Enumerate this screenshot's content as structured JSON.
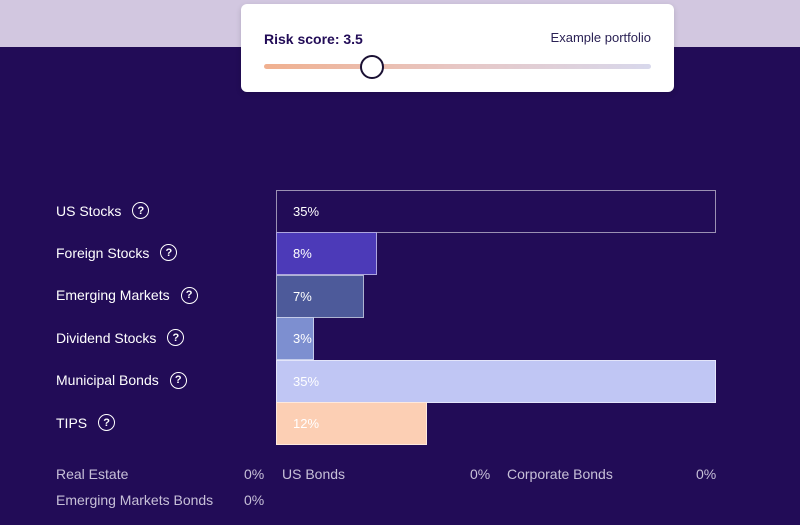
{
  "risk": {
    "title": "Risk score: 3.5",
    "example_label": "Example portfolio",
    "slider_min": 1,
    "slider_max": 10,
    "slider_value": 3.5
  },
  "allocations": [
    {
      "label": "US Stocks",
      "value_text": "35%",
      "percent": 35,
      "bar_color": "#220c57",
      "text_color": "#ffffff"
    },
    {
      "label": "Foreign Stocks",
      "value_text": "8%",
      "percent": 8,
      "bar_color": "#4c3ab8",
      "text_color": "#ffffff"
    },
    {
      "label": "Emerging Markets",
      "value_text": "7%",
      "percent": 7,
      "bar_color": "#4d5a9a",
      "text_color": "#ffffff"
    },
    {
      "label": "Dividend Stocks",
      "value_text": "3%",
      "percent": 3,
      "bar_color": "#7d8fd0",
      "text_color": "#ffffff"
    },
    {
      "label": "Municipal Bonds",
      "value_text": "35%",
      "percent": 35,
      "bar_color": "#c0c6f4",
      "text_color": "#ffffff"
    },
    {
      "label": "TIPS",
      "value_text": "12%",
      "percent": 12,
      "bar_color": "#fccfb4",
      "text_color": "#ffffff"
    }
  ],
  "zero_allocations": [
    {
      "label": "Real Estate",
      "value": "0%"
    },
    {
      "label": "US Bonds",
      "value": "0%"
    },
    {
      "label": "Corporate Bonds",
      "value": "0%"
    },
    {
      "label": "Emerging Markets Bonds",
      "value": "0%"
    }
  ],
  "icons": {
    "help": "question-circle-icon"
  },
  "colors": {
    "background": "#220c57",
    "top_band": "#d2c7e0",
    "card": "#ffffff"
  }
}
